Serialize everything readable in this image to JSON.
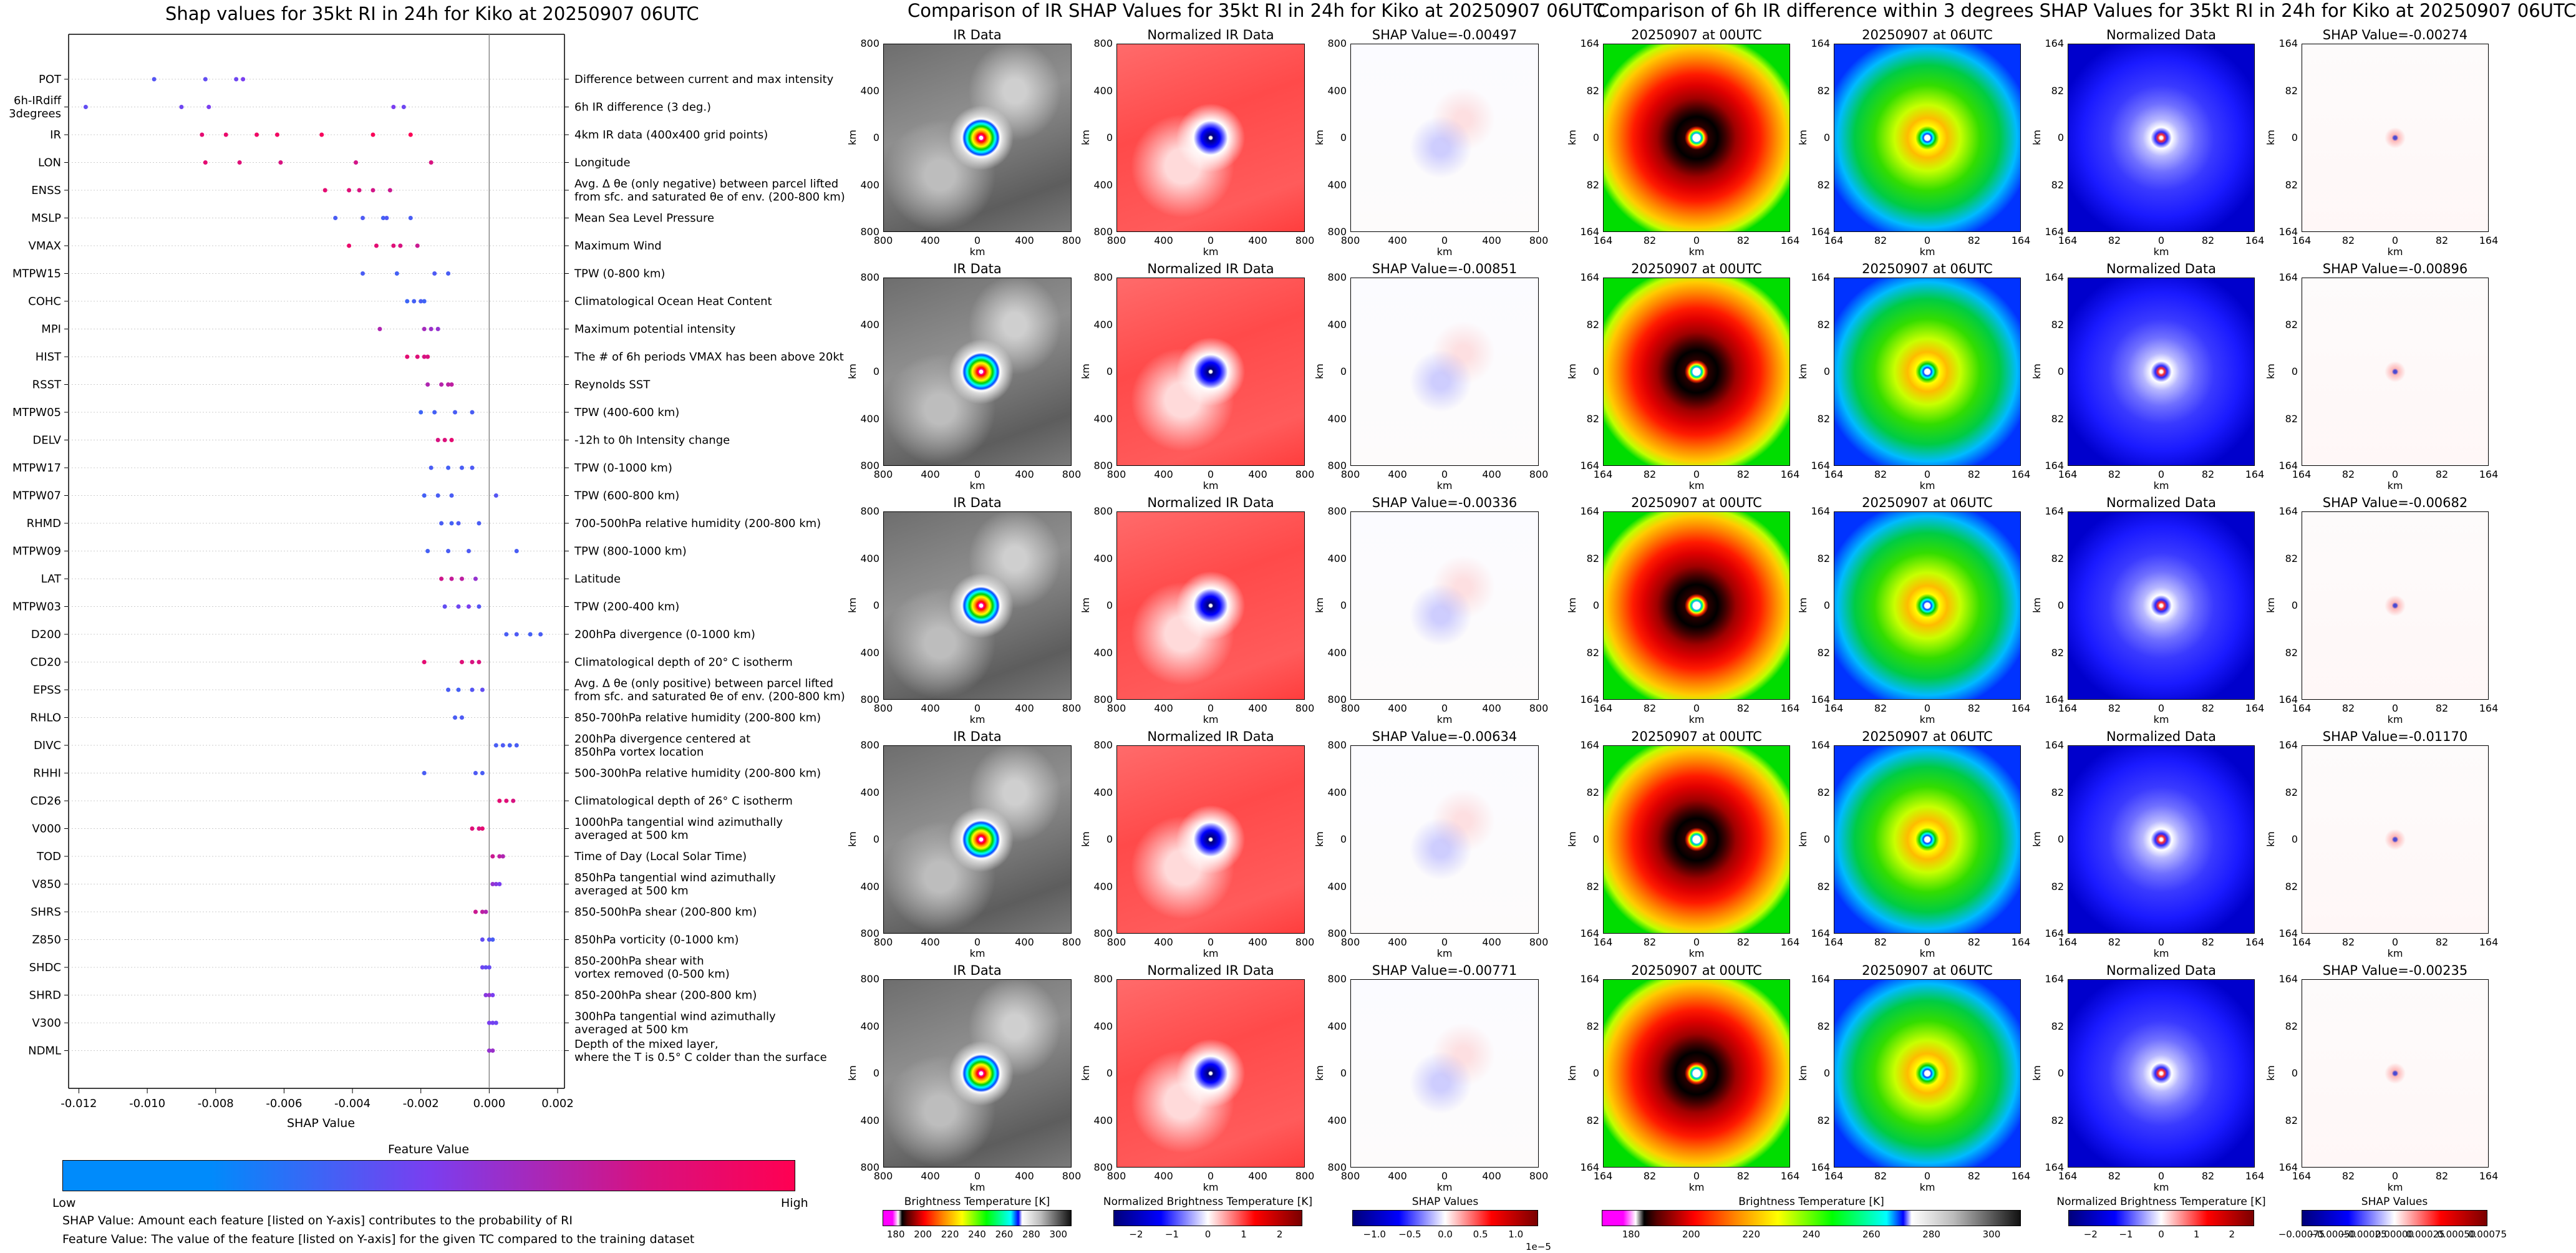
{
  "summary_plot": {
    "title": "Shap values for 35kt RI in 24h for Kiko at 20250907 06UTC",
    "xlabel": "SHAP Value",
    "x_ticks": [
      "-0.012",
      "-0.010",
      "-0.008",
      "-0.006",
      "-0.004",
      "-0.002",
      "0.000",
      "0.002"
    ],
    "features": [
      {
        "short": "POT",
        "desc": "Difference between current and max intensity"
      },
      {
        "short": "6h-IRdiff\n3degrees",
        "desc": "6h IR difference (3 deg.)"
      },
      {
        "short": "IR",
        "desc": "4km IR data (400x400 grid points)"
      },
      {
        "short": "LON",
        "desc": "Longitude"
      },
      {
        "short": "ENSS",
        "desc": "Avg. Δ θe (only negative) between parcel lifted\nfrom sfc. and saturated θe of env. (200-800 km)"
      },
      {
        "short": "MSLP",
        "desc": "Mean Sea Level Pressure"
      },
      {
        "short": "VMAX",
        "desc": "Maximum Wind"
      },
      {
        "short": "MTPW15",
        "desc": "TPW (0-800 km)"
      },
      {
        "short": "COHC",
        "desc": "Climatological Ocean Heat Content"
      },
      {
        "short": "MPI",
        "desc": "Maximum potential intensity"
      },
      {
        "short": "HIST",
        "desc": "The # of 6h periods VMAX has been above 20kt"
      },
      {
        "short": "RSST",
        "desc": "Reynolds SST"
      },
      {
        "short": "MTPW05",
        "desc": "TPW (400-600 km)"
      },
      {
        "short": "DELV",
        "desc": "-12h to 0h Intensity change"
      },
      {
        "short": "MTPW17",
        "desc": "TPW (0-1000 km)"
      },
      {
        "short": "MTPW07",
        "desc": "TPW (600-800 km)"
      },
      {
        "short": "RHMD",
        "desc": "700-500hPa relative humidity (200-800 km)"
      },
      {
        "short": "MTPW09",
        "desc": "TPW (800-1000 km)"
      },
      {
        "short": "LAT",
        "desc": "Latitude"
      },
      {
        "short": "MTPW03",
        "desc": "TPW (200-400 km)"
      },
      {
        "short": "D200",
        "desc": "200hPa divergence (0-1000 km)"
      },
      {
        "short": "CD20",
        "desc": "Climatological depth of 20° C isotherm"
      },
      {
        "short": "EPSS",
        "desc": "Avg. Δ θe (only positive) between parcel lifted\nfrom sfc. and saturated θe of env. (200-800 km)"
      },
      {
        "short": "RHLO",
        "desc": "850-700hPa relative humidity (200-800 km)"
      },
      {
        "short": "DIVC",
        "desc": "200hPa divergence centered at\n850hPa vortex location"
      },
      {
        "short": "RHHI",
        "desc": "500-300hPa relative humidity (200-800 km)"
      },
      {
        "short": "CD26",
        "desc": "Climatological depth of 26° C isotherm"
      },
      {
        "short": "V000",
        "desc": "1000hPa tangential wind azimuthally\naveraged at 500 km"
      },
      {
        "short": "TOD",
        "desc": "Time of Day (Local Solar Time)"
      },
      {
        "short": "V850",
        "desc": "850hPa tangential wind azimuthally\naveraged at 500 km"
      },
      {
        "short": "SHRS",
        "desc": "850-500hPa shear (200-800 km)"
      },
      {
        "short": "Z850",
        "desc": "850hPa vorticity (0-1000 km)"
      },
      {
        "short": "SHDC",
        "desc": "850-200hPa shear with\nvortex removed (0-500 km)"
      },
      {
        "short": "SHRD",
        "desc": "850-200hPa shear (200-800 km)"
      },
      {
        "short": "V300",
        "desc": "300hPa tangential wind azimuthally\naveraged at 500 km"
      },
      {
        "short": "NDML",
        "desc": "Depth of the mixed layer,\nwhere the T is 0.5° C colder than the surface"
      }
    ],
    "colorbar": {
      "title": "Feature Value",
      "low": "Low",
      "high": "High",
      "color_low": "#008bfb",
      "color_high": "#ff0052"
    },
    "notes": [
      "SHAP Value: Amount each feature [listed on Y-axis] contributes to the probability of RI",
      "Feature Value: The value of the feature [listed on Y-axis] for the given TC compared to the training dataset"
    ]
  },
  "ir_section": {
    "title": "Comparison of IR SHAP Values for 35kt RI in 24h for Kiko at 20250907 06UTC",
    "col_titles": [
      "IR Data",
      "Normalized IR Data"
    ],
    "shap_titles": [
      "SHAP Value=-0.00497",
      "SHAP Value=-0.00851",
      "SHAP Value=-0.00336",
      "SHAP Value=-0.00634",
      "SHAP Value=-0.00771"
    ],
    "axis_label": "km",
    "y_ticks": [
      "800",
      "400",
      "0",
      "400",
      "800"
    ],
    "x_ticks": [
      "800",
      "400",
      "0",
      "400",
      "800"
    ],
    "colorbars": [
      {
        "label": "Brightness Temperature [K]",
        "ticks": [
          "180",
          "200",
          "220",
          "240",
          "260",
          "280",
          "300"
        ]
      },
      {
        "label": "Normalized Brightness Temperature [K]",
        "ticks": [
          "−2",
          "−1",
          "0",
          "1",
          "2"
        ]
      },
      {
        "label": "SHAP Values",
        "ticks": [
          "−1.0",
          "−0.5",
          "0.0",
          "0.5",
          "1.0"
        ],
        "exponent": "1e−5"
      }
    ]
  },
  "ir6h_section": {
    "title": "Comparison of 6h IR difference within 3 degrees SHAP Values for 35kt RI in 24h for Kiko at 20250907 06UTC",
    "col_titles": [
      "20250907 at 00UTC",
      "20250907 at 06UTC",
      "Normalized Data"
    ],
    "shap_titles": [
      "SHAP Value=-0.00274",
      "SHAP Value=-0.00896",
      "SHAP Value=-0.00682",
      "SHAP Value=-0.01170",
      "SHAP Value=-0.00235"
    ],
    "axis_label": "km",
    "y_ticks": [
      "164",
      "82",
      "0",
      "82",
      "164"
    ],
    "x_ticks": [
      "164",
      "82",
      "0",
      "82",
      "164"
    ],
    "colorbars": [
      {
        "label": "Brightness Temperature [K]",
        "ticks": [
          "180",
          "200",
          "220",
          "240",
          "260",
          "280",
          "300"
        ]
      },
      {
        "label": "Normalized Brightness Temperature [K]",
        "ticks": [
          "−2",
          "−1",
          "0",
          "1",
          "2"
        ]
      },
      {
        "label": "SHAP Values",
        "ticks": [
          "−0.00075",
          "−0.00050",
          "−0.00025",
          "0.00000",
          "0.00025",
          "0.00050",
          "0.00075"
        ]
      }
    ]
  },
  "chart_data": {
    "type": "scatter",
    "title": "Shap values for 35kt RI in 24h for Kiko at 20250907 06UTC",
    "xlabel": "SHAP Value",
    "xlim": [
      -0.0123,
      0.0022
    ],
    "points": [
      {
        "f": "POT",
        "v": [
          [
            -0.0098,
            0.35
          ],
          [
            -0.0083,
            0.4
          ],
          [
            -0.0074,
            0.45
          ],
          [
            -0.0072,
            0.5
          ]
        ]
      },
      {
        "f": "6h-IRdiff\n3degrees",
        "v": [
          [
            -0.0118,
            0.4
          ],
          [
            -0.009,
            0.45
          ],
          [
            -0.0082,
            0.5
          ],
          [
            -0.0028,
            0.5
          ],
          [
            -0.0025,
            0.45
          ]
        ]
      },
      {
        "f": "IR",
        "v": [
          [
            -0.0084,
            0.9
          ],
          [
            -0.0077,
            0.92
          ],
          [
            -0.0068,
            0.94
          ],
          [
            -0.0062,
            0.95
          ],
          [
            -0.0049,
            0.97
          ],
          [
            -0.0034,
            0.98
          ],
          [
            -0.0023,
            0.99
          ]
        ]
      },
      {
        "f": "LON",
        "v": [
          [
            -0.0083,
            0.9
          ],
          [
            -0.0073,
            0.88
          ],
          [
            -0.0061,
            0.85
          ],
          [
            -0.0039,
            0.83
          ],
          [
            -0.0017,
            0.85
          ]
        ]
      },
      {
        "f": "ENSS",
        "v": [
          [
            -0.0048,
            0.9
          ],
          [
            -0.0041,
            0.88
          ],
          [
            -0.0038,
            0.85
          ],
          [
            -0.0034,
            0.83
          ],
          [
            -0.0029,
            0.8
          ]
        ]
      },
      {
        "f": "MSLP",
        "v": [
          [
            -0.0045,
            0.3
          ],
          [
            -0.0037,
            0.32
          ],
          [
            -0.0031,
            0.28
          ],
          [
            -0.003,
            0.33
          ],
          [
            -0.0023,
            0.3
          ]
        ]
      },
      {
        "f": "VMAX",
        "v": [
          [
            -0.0041,
            0.92
          ],
          [
            -0.0033,
            0.9
          ],
          [
            -0.0028,
            0.88
          ],
          [
            -0.0026,
            0.85
          ],
          [
            -0.0021,
            0.8
          ]
        ]
      },
      {
        "f": "MTPW15",
        "v": [
          [
            -0.0037,
            0.3
          ],
          [
            -0.0027,
            0.28
          ],
          [
            -0.0016,
            0.32
          ],
          [
            -0.0012,
            0.3
          ]
        ]
      },
      {
        "f": "COHC",
        "v": [
          [
            -0.0024,
            0.25
          ],
          [
            -0.0022,
            0.28
          ],
          [
            -0.002,
            0.3
          ],
          [
            -0.0019,
            0.26
          ]
        ]
      },
      {
        "f": "MPI",
        "v": [
          [
            -0.0032,
            0.7
          ],
          [
            -0.0019,
            0.66
          ],
          [
            -0.0017,
            0.62
          ],
          [
            -0.0015,
            0.6
          ]
        ]
      },
      {
        "f": "HIST",
        "v": [
          [
            -0.0024,
            0.9
          ],
          [
            -0.0021,
            0.88
          ],
          [
            -0.0019,
            0.85
          ],
          [
            -0.0018,
            0.86
          ]
        ]
      },
      {
        "f": "RSST",
        "v": [
          [
            -0.0018,
            0.7
          ],
          [
            -0.0014,
            0.72
          ],
          [
            -0.0012,
            0.74
          ],
          [
            -0.0011,
            0.75
          ]
        ]
      },
      {
        "f": "MTPW05",
        "v": [
          [
            -0.002,
            0.25
          ],
          [
            -0.0016,
            0.28
          ],
          [
            -0.001,
            0.3
          ],
          [
            -0.0005,
            0.3
          ]
        ]
      },
      {
        "f": "DELV",
        "v": [
          [
            -0.0015,
            0.85
          ],
          [
            -0.0013,
            0.87
          ],
          [
            -0.0011,
            0.9
          ]
        ]
      },
      {
        "f": "MTPW17",
        "v": [
          [
            -0.0017,
            0.3
          ],
          [
            -0.0012,
            0.28
          ],
          [
            -0.0008,
            0.3
          ],
          [
            -0.0005,
            0.32
          ]
        ]
      },
      {
        "f": "MTPW07",
        "v": [
          [
            -0.0019,
            0.28
          ],
          [
            -0.0015,
            0.3
          ],
          [
            -0.0011,
            0.3
          ],
          [
            0.0002,
            0.35
          ]
        ]
      },
      {
        "f": "RHMD",
        "v": [
          [
            -0.0014,
            0.3
          ],
          [
            -0.0011,
            0.28
          ],
          [
            -0.0009,
            0.32
          ],
          [
            -0.0003,
            0.3
          ]
        ]
      },
      {
        "f": "MTPW09",
        "v": [
          [
            -0.0018,
            0.28
          ],
          [
            -0.0012,
            0.3
          ],
          [
            -0.0006,
            0.32
          ],
          [
            0.0008,
            0.3
          ]
        ]
      },
      {
        "f": "LAT",
        "v": [
          [
            -0.0014,
            0.82
          ],
          [
            -0.0011,
            0.78
          ],
          [
            -0.0008,
            0.75
          ],
          [
            -0.0004,
            0.6
          ]
        ]
      },
      {
        "f": "MTPW03",
        "v": [
          [
            -0.0013,
            0.4
          ],
          [
            -0.0009,
            0.45
          ],
          [
            -0.0006,
            0.5
          ],
          [
            -0.0003,
            0.35
          ]
        ]
      },
      {
        "f": "D200",
        "v": [
          [
            0.0005,
            0.3
          ],
          [
            0.0008,
            0.32
          ],
          [
            0.0012,
            0.28
          ],
          [
            0.0015,
            0.3
          ]
        ]
      },
      {
        "f": "CD20",
        "v": [
          [
            -0.0019,
            0.9
          ],
          [
            -0.0008,
            0.88
          ],
          [
            -0.0005,
            0.85
          ],
          [
            -0.0003,
            0.86
          ]
        ]
      },
      {
        "f": "EPSS",
        "v": [
          [
            -0.0012,
            0.3
          ],
          [
            -0.0009,
            0.28
          ],
          [
            -0.0005,
            0.35
          ],
          [
            -0.0002,
            0.4
          ]
        ]
      },
      {
        "f": "RHLO",
        "v": [
          [
            -0.001,
            0.3
          ],
          [
            -0.0008,
            0.32
          ]
        ]
      },
      {
        "f": "DIVC",
        "v": [
          [
            0.0002,
            0.3
          ],
          [
            0.0004,
            0.32
          ],
          [
            0.0006,
            0.28
          ],
          [
            0.0008,
            0.3
          ]
        ]
      },
      {
        "f": "RHHI",
        "v": [
          [
            -0.0019,
            0.3
          ],
          [
            -0.0004,
            0.32
          ],
          [
            -0.0002,
            0.3
          ]
        ]
      },
      {
        "f": "CD26",
        "v": [
          [
            0.0003,
            0.9
          ],
          [
            0.0005,
            0.88
          ],
          [
            0.0007,
            0.85
          ]
        ]
      },
      {
        "f": "V000",
        "v": [
          [
            -0.0005,
            0.88
          ],
          [
            -0.0003,
            0.85
          ],
          [
            -0.0002,
            0.9
          ]
        ]
      },
      {
        "f": "TOD",
        "v": [
          [
            0.0001,
            0.8
          ],
          [
            0.0003,
            0.75
          ],
          [
            0.0004,
            0.7
          ]
        ]
      },
      {
        "f": "V850",
        "v": [
          [
            0.0001,
            0.6
          ],
          [
            0.0002,
            0.55
          ],
          [
            0.0003,
            0.5
          ]
        ]
      },
      {
        "f": "SHRS",
        "v": [
          [
            -0.0004,
            0.8
          ],
          [
            -0.0002,
            0.75
          ],
          [
            -0.0001,
            0.7
          ]
        ]
      },
      {
        "f": "Z850",
        "v": [
          [
            -0.0002,
            0.4
          ],
          [
            0.0,
            0.35
          ],
          [
            0.0001,
            0.3
          ]
        ]
      },
      {
        "f": "SHDC",
        "v": [
          [
            -0.0002,
            0.45
          ],
          [
            -0.0001,
            0.4
          ],
          [
            0.0,
            0.42
          ]
        ]
      },
      {
        "f": "SHRD",
        "v": [
          [
            -0.0001,
            0.55
          ],
          [
            0.0,
            0.6
          ],
          [
            0.0001,
            0.5
          ]
        ]
      },
      {
        "f": "V300",
        "v": [
          [
            0.0,
            0.5
          ],
          [
            0.0001,
            0.48
          ],
          [
            0.0002,
            0.45
          ]
        ]
      },
      {
        "f": "NDML",
        "v": [
          [
            0.0,
            0.6
          ],
          [
            0.0001,
            0.62
          ]
        ]
      }
    ]
  }
}
